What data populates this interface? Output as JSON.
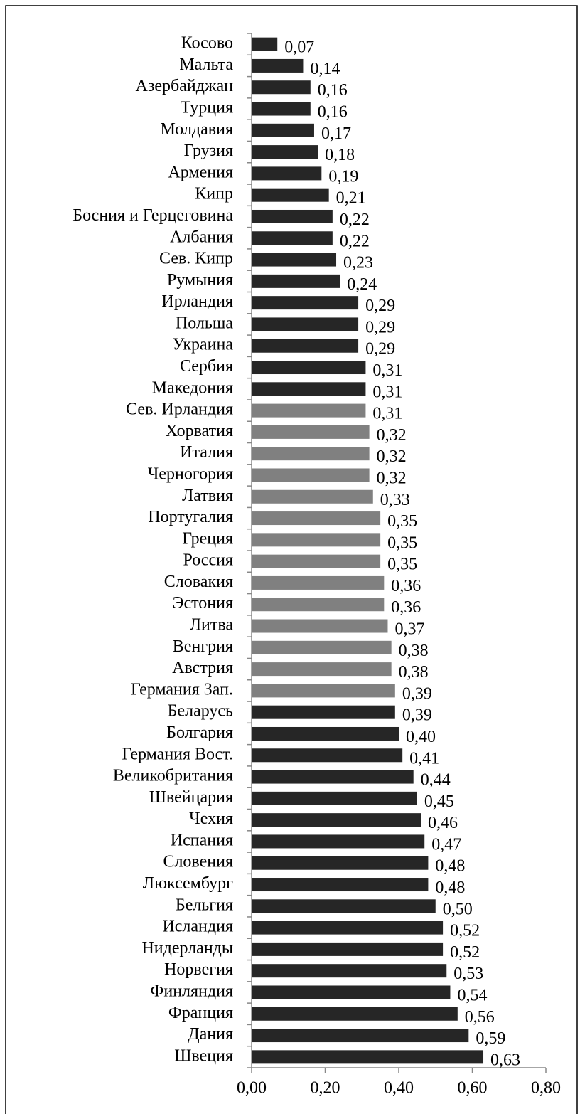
{
  "chart_data": {
    "type": "bar",
    "orientation": "horizontal",
    "categories": [
      "Косово",
      "Мальта",
      "Азербайджан",
      "Турция",
      "Молдавия",
      "Грузия",
      "Армения",
      "Кипр",
      "Босния и Герцеговина",
      "Албания",
      "Сев. Кипр",
      "Румыния",
      "Ирландия",
      "Польша",
      "Украина",
      "Сербия",
      "Македония",
      "Сев. Ирландия",
      "Хорватия",
      "Италия",
      "Черногория",
      "Латвия",
      "Португалия",
      "Греция",
      "Россия",
      "Словакия",
      "Эстония",
      "Литва",
      "Венгрия",
      "Австрия",
      "Германия Зап.",
      "Беларусь",
      "Болгария",
      "Германия Вост.",
      "Великобритания",
      "Швейцария",
      "Чехия",
      "Испания",
      "Словения",
      "Люксембург",
      "Бельгия",
      "Исландия",
      "Нидерланды",
      "Норвегия",
      "Финляндия",
      "Франция",
      "Дания",
      "Швеция"
    ],
    "values": [
      0.07,
      0.14,
      0.16,
      0.16,
      0.17,
      0.18,
      0.19,
      0.21,
      0.22,
      0.22,
      0.23,
      0.24,
      0.29,
      0.29,
      0.29,
      0.31,
      0.31,
      0.31,
      0.32,
      0.32,
      0.32,
      0.33,
      0.35,
      0.35,
      0.35,
      0.36,
      0.36,
      0.37,
      0.38,
      0.38,
      0.39,
      0.39,
      0.4,
      0.41,
      0.44,
      0.45,
      0.46,
      0.47,
      0.48,
      0.48,
      0.5,
      0.52,
      0.52,
      0.53,
      0.54,
      0.56,
      0.59,
      0.63
    ],
    "value_labels": [
      "0,07",
      "0,14",
      "0,16",
      "0,16",
      "0,17",
      "0,18",
      "0,19",
      "0,21",
      "0,22",
      "0,22",
      "0,23",
      "0,24",
      "0,29",
      "0,29",
      "0,29",
      "0,31",
      "0,31",
      "0,31",
      "0,32",
      "0,32",
      "0,32",
      "0,33",
      "0,35",
      "0,35",
      "0,35",
      "0,36",
      "0,36",
      "0,37",
      "0,38",
      "0,38",
      "0,39",
      "0,39",
      "0,40",
      "0,41",
      "0,44",
      "0,45",
      "0,46",
      "0,47",
      "0,48",
      "0,48",
      "0,50",
      "0,52",
      "0,52",
      "0,53",
      "0,54",
      "0,56",
      "0,59",
      "0,63"
    ],
    "colors": [
      "#262626",
      "#262626",
      "#262626",
      "#262626",
      "#262626",
      "#262626",
      "#262626",
      "#262626",
      "#262626",
      "#262626",
      "#262626",
      "#262626",
      "#262626",
      "#262626",
      "#262626",
      "#262626",
      "#262626",
      "#808080",
      "#808080",
      "#808080",
      "#808080",
      "#808080",
      "#808080",
      "#808080",
      "#808080",
      "#808080",
      "#808080",
      "#808080",
      "#808080",
      "#808080",
      "#808080",
      "#262626",
      "#262626",
      "#262626",
      "#262626",
      "#262626",
      "#262626",
      "#262626",
      "#262626",
      "#262626",
      "#262626",
      "#262626",
      "#262626",
      "#262626",
      "#262626",
      "#262626",
      "#262626",
      "#262626"
    ],
    "xlim": [
      0,
      0.8
    ],
    "xticks": [
      {
        "value": 0,
        "label": "0,00"
      },
      {
        "value": 0.2,
        "label": "0,20"
      },
      {
        "value": 0.4,
        "label": "0,40"
      },
      {
        "value": 0.6,
        "label": "0,60"
      },
      {
        "value": 0.8,
        "label": "0,80"
      }
    ]
  }
}
